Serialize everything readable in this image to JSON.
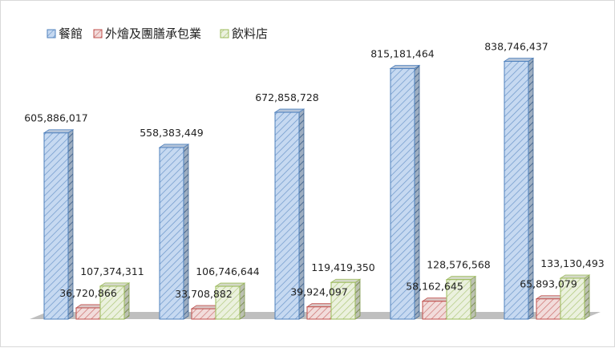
{
  "chart_data": {
    "type": "bar",
    "categories": [
      "",
      "",
      "",
      "",
      ""
    ],
    "series": [
      {
        "name": "餐館",
        "color": "#4f81bd",
        "fill": "#c6d9f1",
        "values": [
          605886017,
          558383449,
          672858728,
          815181464,
          838746437
        ],
        "value_labels": [
          "605,886,017",
          "558,383,449",
          "672,858,728",
          "815,181,464",
          "838,746,437"
        ]
      },
      {
        "name": "外燴及團膳承包業",
        "color": "#c0504d",
        "fill": "#f2dcdb",
        "values": [
          36720866,
          33708882,
          39924097,
          58162645,
          65893079
        ],
        "value_labels": [
          "36,720,866",
          "33,708,882",
          "39,924,097",
          "58,162,645",
          "65,893,079"
        ]
      },
      {
        "name": "飲料店",
        "color": "#9bbb59",
        "fill": "#ebf1de",
        "values": [
          107374311,
          106746644,
          119419350,
          128576568,
          133130493
        ],
        "value_labels": [
          "107,374,311",
          "106,746,644",
          "119,419,350",
          "128,576,568",
          "133,130,493"
        ]
      }
    ],
    "legend": "top-left",
    "grid": false,
    "three_d": true,
    "ylim": [
      0,
      900000000
    ]
  }
}
